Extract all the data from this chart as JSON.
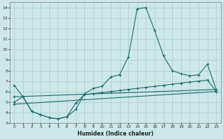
{
  "xlabel": "Humidex (Indice chaleur)",
  "xlim": [
    -0.5,
    23.5
  ],
  "ylim": [
    3,
    14.5
  ],
  "yticks": [
    3,
    4,
    5,
    6,
    7,
    8,
    9,
    10,
    11,
    12,
    13,
    14
  ],
  "xticks": [
    0,
    1,
    2,
    3,
    4,
    5,
    6,
    7,
    8,
    9,
    10,
    11,
    12,
    13,
    14,
    15,
    16,
    17,
    18,
    19,
    20,
    21,
    22,
    23
  ],
  "bg_color": "#cde8e8",
  "line_color": "#1a6b6b",
  "grid_color": "#b0d0d0",
  "main_x": [
    0,
    1,
    2,
    3,
    4,
    5,
    6,
    7,
    8,
    9,
    10,
    11,
    12,
    13,
    14,
    15,
    16,
    17,
    18,
    19,
    20,
    21,
    22,
    23
  ],
  "main_y": [
    6.6,
    5.5,
    4.1,
    3.8,
    3.5,
    3.4,
    3.6,
    4.3,
    5.8,
    6.3,
    6.5,
    7.4,
    7.6,
    9.3,
    13.9,
    14.0,
    11.8,
    9.4,
    8.0,
    7.7,
    7.5,
    7.6,
    8.6,
    6.2
  ],
  "trend1_x": [
    0,
    23
  ],
  "trend1_y": [
    5.5,
    6.2
  ],
  "trend2_x": [
    0,
    23
  ],
  "trend2_y": [
    4.8,
    6.0
  ],
  "data_with_markers_x": [
    0,
    1,
    2,
    3,
    4,
    5,
    6,
    7,
    8,
    9,
    10,
    11,
    12,
    13,
    14,
    15,
    16,
    17,
    18,
    19,
    20,
    21,
    22,
    23
  ],
  "data_with_markers_y": [
    6.6,
    5.5,
    4.1,
    3.8,
    3.5,
    3.4,
    3.6,
    4.3,
    5.8,
    6.3,
    6.5,
    7.4,
    7.6,
    9.3,
    13.9,
    14.0,
    11.8,
    9.4,
    8.0,
    7.7,
    7.5,
    7.6,
    8.6,
    6.2
  ],
  "lower_curve_x": [
    0,
    1,
    2,
    3,
    4,
    5,
    6,
    7,
    8,
    9,
    10,
    11,
    12,
    13,
    14,
    15,
    16,
    17,
    18,
    19,
    20,
    21,
    22,
    23
  ],
  "lower_curve_y": [
    5.0,
    5.5,
    4.1,
    3.8,
    3.5,
    3.4,
    3.6,
    4.9,
    5.7,
    5.8,
    5.9,
    6.0,
    6.1,
    6.2,
    6.3,
    6.4,
    6.5,
    6.6,
    6.7,
    6.8,
    6.9,
    7.0,
    7.1,
    6.0
  ]
}
